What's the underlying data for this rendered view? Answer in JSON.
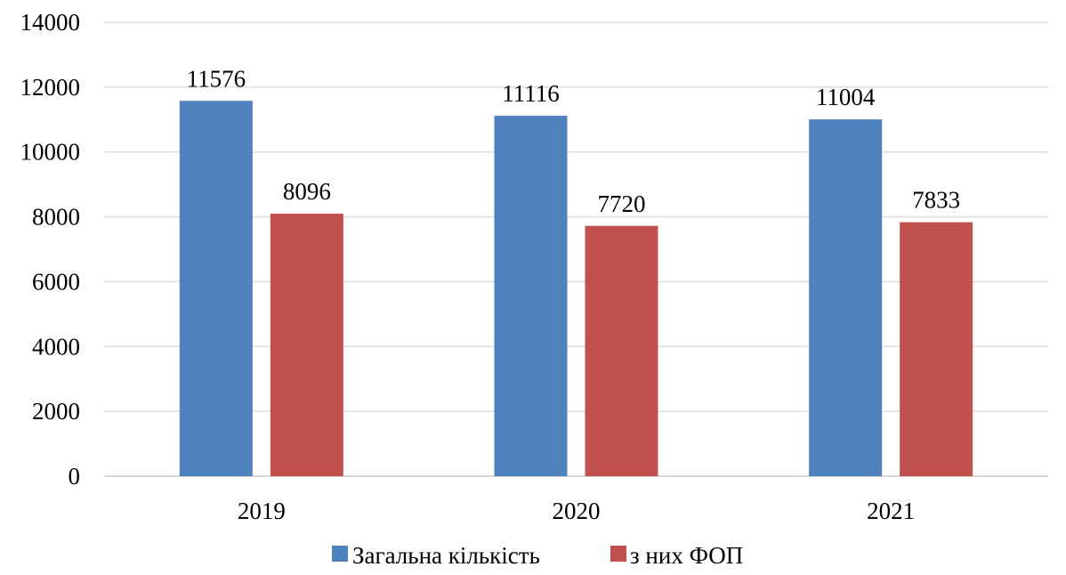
{
  "chart_data": {
    "type": "bar",
    "title": "",
    "xlabel": "",
    "ylabel": "",
    "categories": [
      "2019",
      "2020",
      "2021"
    ],
    "series": [
      {
        "name": "Загальна кількість",
        "color": "#4f81bd",
        "values": [
          11576,
          11116,
          11004
        ]
      },
      {
        "name": "з них ФОП",
        "color": "#c0504d",
        "values": [
          8096,
          7720,
          7833
        ]
      }
    ],
    "ylim": [
      0,
      14000
    ],
    "yticks": [
      0,
      2000,
      4000,
      6000,
      8000,
      10000,
      12000,
      14000
    ],
    "grid": true,
    "legend_position": "bottom",
    "data_labels": true
  }
}
